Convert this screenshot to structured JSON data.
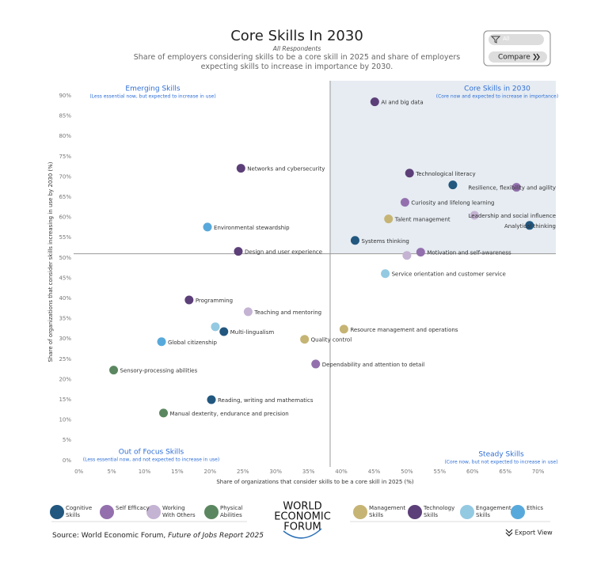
{
  "chart_data": {
    "type": "scatter",
    "title": "Core Skills In 2030",
    "respondents": "All Respondents",
    "subtitle": "Share of employers considering skills to be a core skill in 2025 and share of employers expecting skills to increase in importance by 2030.",
    "x_label": "Share of organizations that consider skills to be a core skill in 2025 (%)",
    "y_label": "Share of organizations that consider skills increasing in use by 2030 (%)",
    "xlim": [
      -0.8,
      72.7
    ],
    "ylim": [
      -1.6,
      93.7
    ],
    "xticks": [
      {
        "value": 0,
        "label": "0%"
      },
      {
        "value": 5,
        "label": "5%"
      },
      {
        "value": 10,
        "label": "10%"
      },
      {
        "value": 15,
        "label": "15%"
      },
      {
        "value": 20,
        "label": "20%"
      },
      {
        "value": 25,
        "label": "25%"
      },
      {
        "value": 30,
        "label": "30%"
      },
      {
        "value": 35,
        "label": "35%"
      },
      {
        "value": 40,
        "label": "40%"
      },
      {
        "value": 45,
        "label": "45%"
      },
      {
        "value": 50,
        "label": "50%"
      },
      {
        "value": 55,
        "label": "55%"
      },
      {
        "value": 60,
        "label": "60%"
      },
      {
        "value": 65,
        "label": "65%"
      },
      {
        "value": 70,
        "label": "70%"
      }
    ],
    "yticks": [
      {
        "value": 0,
        "label": "0%"
      },
      {
        "value": 5,
        "label": "5%"
      },
      {
        "value": 10,
        "label": "10%"
      },
      {
        "value": 15,
        "label": "15%"
      },
      {
        "value": 20,
        "label": "20%"
      },
      {
        "value": 25,
        "label": "25%"
      },
      {
        "value": 30,
        "label": "30%"
      },
      {
        "value": 35,
        "label": "35%"
      },
      {
        "value": 40,
        "label": "40%"
      },
      {
        "value": 45,
        "label": "45%"
      },
      {
        "value": 50,
        "label": "50%"
      },
      {
        "value": 55,
        "label": "55%"
      },
      {
        "value": 60,
        "label": "60%"
      },
      {
        "value": 65,
        "label": "65%"
      },
      {
        "value": 70,
        "label": "70%"
      },
      {
        "value": 75,
        "label": "75%"
      },
      {
        "value": 80,
        "label": "80%"
      },
      {
        "value": 85,
        "label": "85%"
      },
      {
        "value": 90,
        "label": "90%"
      }
    ],
    "grid": false,
    "reference_lines": {
      "x": 38.3,
      "y": 51.0
    },
    "highlight_color": "#e6ecf2",
    "quadrants": {
      "top_left": {
        "title": "Emerging Skills",
        "note": "(Less essential now, but expected to increase in use)"
      },
      "top_right": {
        "title": "Core Skills in 2030",
        "note": "(Core now and expected to increase in importance)"
      },
      "bottom_left": {
        "title": "Out of Focus Skills",
        "note": "(Less essential now, and not expected to increase in use)"
      },
      "bottom_right": {
        "title": "Steady Skills",
        "note": "(Core now, but not expected to increase in use)"
      }
    },
    "series": [
      {
        "name": "Cognitive Skills",
        "color": "#22577f",
        "x": [
          57.0,
          68.7,
          42.1,
          22.1,
          20.2
        ],
        "y": [
          68.0,
          58.0,
          54.3,
          31.8,
          15.0
        ],
        "labels": [
          null,
          "Analytical thinking",
          "Systems thinking",
          "Multi-lingualism",
          "Reading, writing and mathematics"
        ]
      },
      {
        "name": "Self Efficacy",
        "color": "#9370ad",
        "x": [
          66.7,
          49.7,
          52.1,
          36.1
        ],
        "y": [
          67.4,
          63.7,
          51.4,
          23.8
        ],
        "labels": [
          "Resilience, flexibility and agility",
          "Curiosity and lifelong learning",
          "Motivation and self-awareness",
          "Dependability and attention to detail"
        ]
      },
      {
        "name": "Working With Others",
        "color": "#c5b3d3",
        "x": [
          60.3,
          50.0,
          25.8
        ],
        "y": [
          60.5,
          50.6,
          36.7
        ],
        "labels": [
          "Leadership and social influence",
          null,
          "Teaching and mentoring"
        ]
      },
      {
        "name": "Physical Abilities",
        "color": "#5b8760",
        "x": [
          5.3,
          12.9
        ],
        "y": [
          22.3,
          11.7
        ],
        "labels": [
          "Sensory-processing abilities",
          "Manual dexterity, endurance and precision"
        ]
      },
      {
        "name": "Management Skills",
        "color": "#c6b474",
        "x": [
          47.2,
          40.4,
          34.4
        ],
        "y": [
          59.6,
          32.4,
          29.9
        ],
        "labels": [
          "Talent management",
          "Resource management and operations",
          "Quality control"
        ]
      },
      {
        "name": "Technology Skills",
        "color": "#5c3f78",
        "x": [
          45.1,
          24.7,
          50.4,
          24.3,
          16.8
        ],
        "y": [
          88.5,
          72.1,
          70.9,
          51.6,
          39.6
        ],
        "labels": [
          "AI and big data",
          "Networks and cybersecurity",
          "Technological literacy",
          "Design and user experience",
          "Programming"
        ]
      },
      {
        "name": "Engagement Skills",
        "color": "#94c9e2",
        "x": [
          46.7,
          20.8
        ],
        "y": [
          46.1,
          33.0
        ],
        "labels": [
          "Service orientation and customer service",
          null
        ]
      },
      {
        "name": "Ethics",
        "color": "#58a9db",
        "x": [
          19.6,
          12.6
        ],
        "y": [
          57.6,
          29.3
        ],
        "labels": [
          "Environmental stewardship",
          "Global citizenship"
        ]
      }
    ]
  },
  "controls": {
    "filter": "All",
    "compare": "Compare",
    "export": "Export View"
  },
  "logo": [
    "WORLD",
    "ECONOMIC",
    "FORUM"
  ],
  "source": {
    "prefix": "Source: World Economic Forum, ",
    "title": "Future of Jobs Report 2025"
  }
}
